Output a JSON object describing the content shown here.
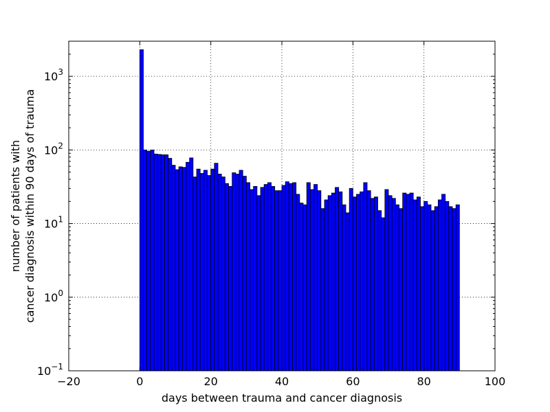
{
  "chart_data": {
    "type": "bar",
    "xlabel": "days between trauma and cancer diagnosis",
    "ylabel_lines": [
      "number of patients with",
      "cancer diagnosis within 90 days of trauma"
    ],
    "x_scale": "linear",
    "y_scale": "log",
    "xlim": [
      -20,
      100
    ],
    "ylim": [
      0.1,
      3000
    ],
    "x_ticks": [
      -20,
      0,
      20,
      40,
      60,
      80,
      100
    ],
    "x_tick_labels": [
      "−20",
      "0",
      "20",
      "40",
      "60",
      "80",
      "100"
    ],
    "y_ticks": [
      {
        "value": 0.1,
        "base": "10",
        "exp": "−1"
      },
      {
        "value": 1,
        "base": "10",
        "exp": "0"
      },
      {
        "value": 10,
        "base": "10",
        "exp": "1"
      },
      {
        "value": 100,
        "base": "10",
        "exp": "2"
      },
      {
        "value": 1000,
        "base": "10",
        "exp": "3"
      }
    ],
    "grid": true,
    "bar_color": "#0000ff",
    "bin_width": 1,
    "bin_starts": [
      0,
      1,
      2,
      3,
      4,
      5,
      6,
      7,
      8,
      9,
      10,
      11,
      12,
      13,
      14,
      15,
      16,
      17,
      18,
      19,
      20,
      21,
      22,
      23,
      24,
      25,
      26,
      27,
      28,
      29,
      30,
      31,
      32,
      33,
      34,
      35,
      36,
      37,
      38,
      39,
      40,
      41,
      42,
      43,
      44,
      45,
      46,
      47,
      48,
      49,
      50,
      51,
      52,
      53,
      54,
      55,
      56,
      57,
      58,
      59,
      60,
      61,
      62,
      63,
      64,
      65,
      66,
      67,
      68,
      69,
      70,
      71,
      72,
      73,
      74,
      75,
      76,
      77,
      78,
      79,
      80,
      81,
      82,
      83,
      84,
      85,
      86,
      87,
      88,
      89
    ],
    "values": [
      2300,
      100,
      96,
      100,
      88,
      87,
      86,
      86,
      77,
      62,
      54,
      59,
      58,
      68,
      78,
      43,
      55,
      48,
      53,
      45,
      55,
      66,
      47,
      43,
      35,
      32,
      49,
      47,
      53,
      44,
      36,
      29,
      32,
      24,
      31,
      34,
      36,
      32,
      28,
      28,
      33,
      37,
      35,
      36,
      25,
      19,
      18,
      36,
      29,
      34,
      28,
      16,
      21,
      24,
      26,
      31,
      27,
      18,
      14,
      30,
      23,
      25,
      27,
      36,
      28,
      22,
      23,
      15,
      12,
      29,
      24,
      22,
      18,
      16,
      26,
      25,
      26,
      21,
      23,
      17,
      20,
      18,
      15,
      17,
      21,
      25,
      20,
      17,
      16,
      18
    ]
  }
}
